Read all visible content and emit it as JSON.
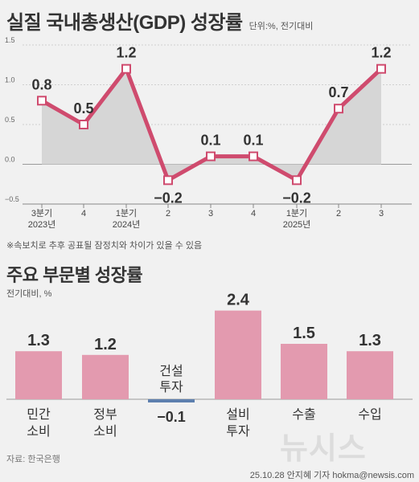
{
  "header": {
    "title": "실질 국내총생산(GDP) 성장률",
    "unit_note": "단위:%, 전기대비"
  },
  "colors": {
    "line": "#cf4b6e",
    "area": "#d6d6d6",
    "bar": "#e39aaf",
    "bar_negative": "#5d7fae",
    "background": "#f1f1f1"
  },
  "chart_data": [
    {
      "type": "line",
      "title": "실질 국내총생산(GDP) 성장률",
      "unit": "단위:%, 전기대비",
      "x_labels": [
        {
          "top": "3분기",
          "bottom": "2023년"
        },
        {
          "top": "4",
          "bottom": ""
        },
        {
          "top": "1분기",
          "bottom": "2024년"
        },
        {
          "top": "2",
          "bottom": ""
        },
        {
          "top": "3",
          "bottom": ""
        },
        {
          "top": "4",
          "bottom": ""
        },
        {
          "top": "1분기",
          "bottom": "2025년"
        },
        {
          "top": "2",
          "bottom": ""
        },
        {
          "top": "3",
          "bottom": ""
        }
      ],
      "values": [
        0.8,
        0.5,
        1.2,
        -0.2,
        0.1,
        0.1,
        -0.2,
        0.7,
        1.2
      ],
      "value_labels": [
        "0.8",
        "0.5",
        "1.2",
        "−0.2",
        "0.1",
        "0.1",
        "−0.2",
        "0.7",
        "1.2"
      ],
      "y_ticks": [
        "1.5",
        "1.0",
        "0.5",
        "0.0",
        "−0.5"
      ],
      "y_tick_values": [
        1.5,
        1.0,
        0.5,
        0.0,
        -0.5
      ],
      "ylim": [
        -0.5,
        1.5
      ],
      "grid": true
    },
    {
      "type": "bar",
      "title": "주요 부문별 성장률",
      "unit": "전기대비, %",
      "categories": [
        {
          "line1": "민간",
          "line2": "소비"
        },
        {
          "line1": "정부",
          "line2": "소비"
        },
        {
          "line1": "건설",
          "line2": "투자"
        },
        {
          "line1": "설비",
          "line2": "투자"
        },
        {
          "line1": "수출",
          "line2": ""
        },
        {
          "line1": "수입",
          "line2": ""
        }
      ],
      "values": [
        1.3,
        1.2,
        -0.1,
        2.4,
        1.5,
        1.3
      ],
      "value_labels": [
        "1.3",
        "1.2",
        "−0.1",
        "2.4",
        "1.5",
        "1.3"
      ],
      "ylim": [
        -0.1,
        2.4
      ]
    }
  ],
  "footnote": "※속보치로 추후 공표될 잠정치와 차이가 있을 수 있음",
  "source": "자료: 한국은행",
  "credit": "25.10.28 안지혜 기자 hokma@newsis.com",
  "logo": "뉴시스"
}
